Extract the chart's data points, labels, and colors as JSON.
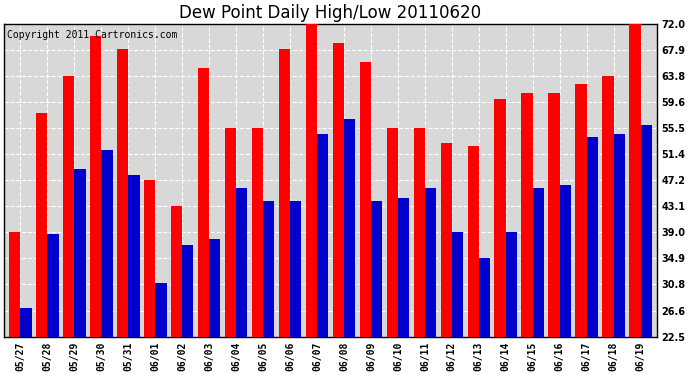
{
  "title": "Dew Point Daily High/Low 20110620",
  "copyright": "Copyright 2011 Cartronics.com",
  "categories": [
    "05/27",
    "05/28",
    "05/29",
    "05/30",
    "05/31",
    "06/01",
    "06/02",
    "06/03",
    "06/04",
    "06/05",
    "06/06",
    "06/07",
    "06/08",
    "06/09",
    "06/10",
    "06/11",
    "06/12",
    "06/13",
    "06/14",
    "06/15",
    "06/16",
    "06/17",
    "06/18",
    "06/19"
  ],
  "highs": [
    39.0,
    57.9,
    63.8,
    70.0,
    68.0,
    47.2,
    43.1,
    65.0,
    55.5,
    55.5,
    68.0,
    72.0,
    69.0,
    66.0,
    55.5,
    55.5,
    53.2,
    52.7,
    60.1,
    61.0,
    61.0,
    62.5,
    63.8,
    72.0
  ],
  "lows": [
    27.0,
    38.8,
    49.0,
    52.0,
    48.0,
    31.0,
    37.0,
    38.0,
    46.0,
    44.0,
    44.0,
    54.5,
    57.0,
    44.0,
    44.5,
    46.0,
    39.0,
    34.9,
    39.0,
    46.0,
    46.5,
    54.0,
    54.5,
    56.0
  ],
  "high_color": "#ff0000",
  "low_color": "#0000cc",
  "bg_color": "#ffffff",
  "plot_bg_color": "#d8d8d8",
  "grid_color": "#ffffff",
  "ymin": 22.5,
  "ymax": 72.0,
  "yticks": [
    22.5,
    26.6,
    30.8,
    34.9,
    39.0,
    43.1,
    47.2,
    51.4,
    55.5,
    59.6,
    63.8,
    67.9,
    72.0
  ],
  "title_fontsize": 12,
  "copyright_fontsize": 7,
  "tick_fontsize": 7,
  "bar_width": 0.42
}
